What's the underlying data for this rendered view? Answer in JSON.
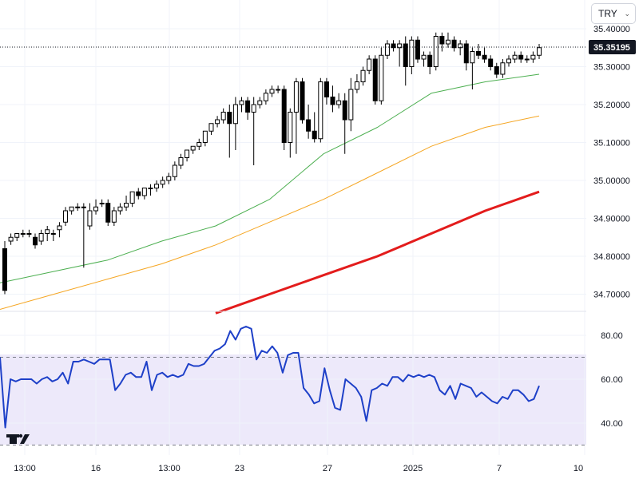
{
  "currency": {
    "label": "TRY",
    "icon": "chevron-down-icon"
  },
  "logo": {
    "text": "TV"
  },
  "chart_data": {
    "type": "candlestick",
    "colors": {
      "up": "#ffffff",
      "down": "#000000",
      "ma_fast": "#4caf50",
      "ma_mid": "#f5a623",
      "ma_slow": "#e31c1c",
      "rsi": "#1e40c8",
      "rsi_band": "#ede9fa"
    },
    "price_axis": {
      "min": 34.65,
      "max": 35.42,
      "ticks": [
        "35.40000",
        "35.30000",
        "35.20000",
        "35.10000",
        "35.00000",
        "34.90000",
        "34.80000",
        "34.70000"
      ]
    },
    "last_price": {
      "value": 35.35195,
      "label": "35.35195"
    },
    "x_axis": {
      "labels": [
        "13:00",
        "16",
        "13:00",
        "23",
        "27",
        "2025",
        "7",
        "10"
      ]
    },
    "candles": [
      [
        34.82,
        34.84,
        34.7,
        34.71
      ],
      [
        34.84,
        34.86,
        34.83,
        34.85
      ],
      [
        34.85,
        34.86,
        34.84,
        34.86
      ],
      [
        34.86,
        34.87,
        34.85,
        34.86
      ],
      [
        34.86,
        34.87,
        34.85,
        34.86
      ],
      [
        34.85,
        34.86,
        34.82,
        34.83
      ],
      [
        34.84,
        34.87,
        34.83,
        34.86
      ],
      [
        34.86,
        34.88,
        34.84,
        34.87
      ],
      [
        34.86,
        34.87,
        34.84,
        34.86
      ],
      [
        34.87,
        34.89,
        34.85,
        34.88
      ],
      [
        34.89,
        34.93,
        34.88,
        34.92
      ],
      [
        34.92,
        34.93,
        34.91,
        34.93
      ],
      [
        34.93,
        34.94,
        34.92,
        34.93
      ],
      [
        34.93,
        34.94,
        34.77,
        34.93
      ],
      [
        34.88,
        34.94,
        34.87,
        34.92
      ],
      [
        34.92,
        34.95,
        34.91,
        34.93
      ],
      [
        34.94,
        34.95,
        34.93,
        34.94
      ],
      [
        34.94,
        34.95,
        34.88,
        34.89
      ],
      [
        34.89,
        34.93,
        34.88,
        34.92
      ],
      [
        34.92,
        34.94,
        34.91,
        34.93
      ],
      [
        34.93,
        34.96,
        34.92,
        34.94
      ],
      [
        34.94,
        34.97,
        34.93,
        34.97
      ],
      [
        34.97,
        34.98,
        34.95,
        34.96
      ],
      [
        34.96,
        34.98,
        34.95,
        34.98
      ],
      [
        34.98,
        34.99,
        34.96,
        34.98
      ],
      [
        34.98,
        35.0,
        34.97,
        34.99
      ],
      [
        34.99,
        35.01,
        34.98,
        35.0
      ],
      [
        35.0,
        35.02,
        34.99,
        35.01
      ],
      [
        35.01,
        35.05,
        35.0,
        35.04
      ],
      [
        35.04,
        35.07,
        35.03,
        35.06
      ],
      [
        35.06,
        35.08,
        35.05,
        35.08
      ],
      [
        35.08,
        35.09,
        35.07,
        35.09
      ],
      [
        35.09,
        35.11,
        35.08,
        35.1
      ],
      [
        35.1,
        35.13,
        35.09,
        35.13
      ],
      [
        35.13,
        35.15,
        35.12,
        35.15
      ],
      [
        35.15,
        35.17,
        35.14,
        35.16
      ],
      [
        35.16,
        35.19,
        35.15,
        35.18
      ],
      [
        35.18,
        35.2,
        35.06,
        35.15
      ],
      [
        35.15,
        35.22,
        35.08,
        35.2
      ],
      [
        35.2,
        35.22,
        35.18,
        35.21
      ],
      [
        35.21,
        35.22,
        35.16,
        35.18
      ],
      [
        35.18,
        35.22,
        35.04,
        35.2
      ],
      [
        35.2,
        35.22,
        35.19,
        35.21
      ],
      [
        35.21,
        35.24,
        35.2,
        35.23
      ],
      [
        35.23,
        35.25,
        35.22,
        35.24
      ],
      [
        35.24,
        35.25,
        35.23,
        35.24
      ],
      [
        35.24,
        35.25,
        35.08,
        35.1
      ],
      [
        35.1,
        35.19,
        35.06,
        35.18
      ],
      [
        35.18,
        35.27,
        35.07,
        35.26
      ],
      [
        35.26,
        35.27,
        35.15,
        35.16
      ],
      [
        35.16,
        35.2,
        35.11,
        35.13
      ],
      [
        35.13,
        35.18,
        35.1,
        35.11
      ],
      [
        35.11,
        35.27,
        35.1,
        35.26
      ],
      [
        35.26,
        35.27,
        35.2,
        35.22
      ],
      [
        35.22,
        35.25,
        35.18,
        35.2
      ],
      [
        35.2,
        35.23,
        35.19,
        35.21
      ],
      [
        35.21,
        35.23,
        35.07,
        35.16
      ],
      [
        35.16,
        35.27,
        35.13,
        35.24
      ],
      [
        35.24,
        35.28,
        35.23,
        35.26
      ],
      [
        35.26,
        35.3,
        35.25,
        35.29
      ],
      [
        35.29,
        35.33,
        35.28,
        35.32
      ],
      [
        35.32,
        35.33,
        35.2,
        35.21
      ],
      [
        35.21,
        35.35,
        35.2,
        35.33
      ],
      [
        35.33,
        35.37,
        35.32,
        35.36
      ],
      [
        35.36,
        35.37,
        35.34,
        35.35
      ],
      [
        35.35,
        35.37,
        35.3,
        35.36
      ],
      [
        35.36,
        35.38,
        35.25,
        35.3
      ],
      [
        35.3,
        35.38,
        35.28,
        35.37
      ],
      [
        35.37,
        35.38,
        35.31,
        35.32
      ],
      [
        35.32,
        35.34,
        35.3,
        35.33
      ],
      [
        35.33,
        35.34,
        35.28,
        35.3
      ],
      [
        35.3,
        35.39,
        35.29,
        35.38
      ],
      [
        35.38,
        35.39,
        35.34,
        35.36
      ],
      [
        35.36,
        35.39,
        35.35,
        35.37
      ],
      [
        35.37,
        35.38,
        35.34,
        35.35
      ],
      [
        35.35,
        35.37,
        35.33,
        35.36
      ],
      [
        35.36,
        35.37,
        35.29,
        35.31
      ],
      [
        35.31,
        35.35,
        35.24,
        35.34
      ],
      [
        35.34,
        35.36,
        35.32,
        35.33
      ],
      [
        35.33,
        35.35,
        35.31,
        35.32
      ],
      [
        35.32,
        35.33,
        35.29,
        35.3
      ],
      [
        35.3,
        35.31,
        35.27,
        35.28
      ],
      [
        35.28,
        35.32,
        35.27,
        35.31
      ],
      [
        35.31,
        35.33,
        35.3,
        35.32
      ],
      [
        35.32,
        35.34,
        35.31,
        35.33
      ],
      [
        35.33,
        35.34,
        35.31,
        35.32
      ],
      [
        35.32,
        35.33,
        35.31,
        35.32
      ],
      [
        35.32,
        35.34,
        35.31,
        35.33
      ],
      [
        35.33,
        35.36,
        35.32,
        35.35
      ]
    ],
    "ma_fast": [
      [
        0,
        34.73
      ],
      [
        0.1,
        34.76
      ],
      [
        0.2,
        34.79
      ],
      [
        0.3,
        34.84
      ],
      [
        0.4,
        34.88
      ],
      [
        0.5,
        34.95
      ],
      [
        0.6,
        35.07
      ],
      [
        0.7,
        35.14
      ],
      [
        0.8,
        35.23
      ],
      [
        0.9,
        35.26
      ],
      [
        1,
        35.28
      ]
    ],
    "ma_mid": [
      [
        0,
        34.66
      ],
      [
        0.1,
        34.7
      ],
      [
        0.2,
        34.74
      ],
      [
        0.3,
        34.78
      ],
      [
        0.4,
        34.83
      ],
      [
        0.5,
        34.89
      ],
      [
        0.6,
        34.95
      ],
      [
        0.7,
        35.02
      ],
      [
        0.8,
        35.09
      ],
      [
        0.9,
        35.14
      ],
      [
        1,
        35.17
      ]
    ],
    "ma_slow": [
      [
        0.4,
        34.65
      ],
      [
        0.5,
        34.7
      ],
      [
        0.6,
        34.75
      ],
      [
        0.7,
        34.8
      ],
      [
        0.8,
        34.86
      ],
      [
        0.9,
        34.92
      ],
      [
        1,
        34.97
      ]
    ],
    "rsi": {
      "ticks": [
        "80.00",
        "60.00",
        "40.00"
      ],
      "min": 30,
      "max": 90,
      "upper": 70,
      "lower": 30,
      "values": [
        70,
        38,
        60,
        59,
        60,
        60,
        60,
        58,
        60,
        61,
        59,
        60,
        63,
        58,
        68,
        68,
        69,
        68,
        67,
        69,
        69,
        69,
        55,
        58,
        62,
        63,
        61,
        61,
        68,
        55,
        62,
        63,
        61,
        62,
        61,
        62,
        67,
        66,
        66,
        67,
        70,
        73,
        74,
        76,
        82,
        78,
        83,
        84,
        83,
        69,
        73,
        72,
        75,
        72,
        63,
        71,
        72,
        72,
        56,
        53,
        49,
        50,
        65,
        55,
        47,
        46,
        60,
        58,
        56,
        52,
        41,
        55,
        56,
        58,
        57,
        61,
        61,
        59,
        62,
        61,
        62,
        61,
        62,
        61,
        55,
        53,
        57,
        51,
        58,
        57,
        56,
        52,
        54,
        52,
        50,
        49,
        52,
        51,
        55,
        55,
        53,
        50,
        51,
        57
      ]
    }
  }
}
